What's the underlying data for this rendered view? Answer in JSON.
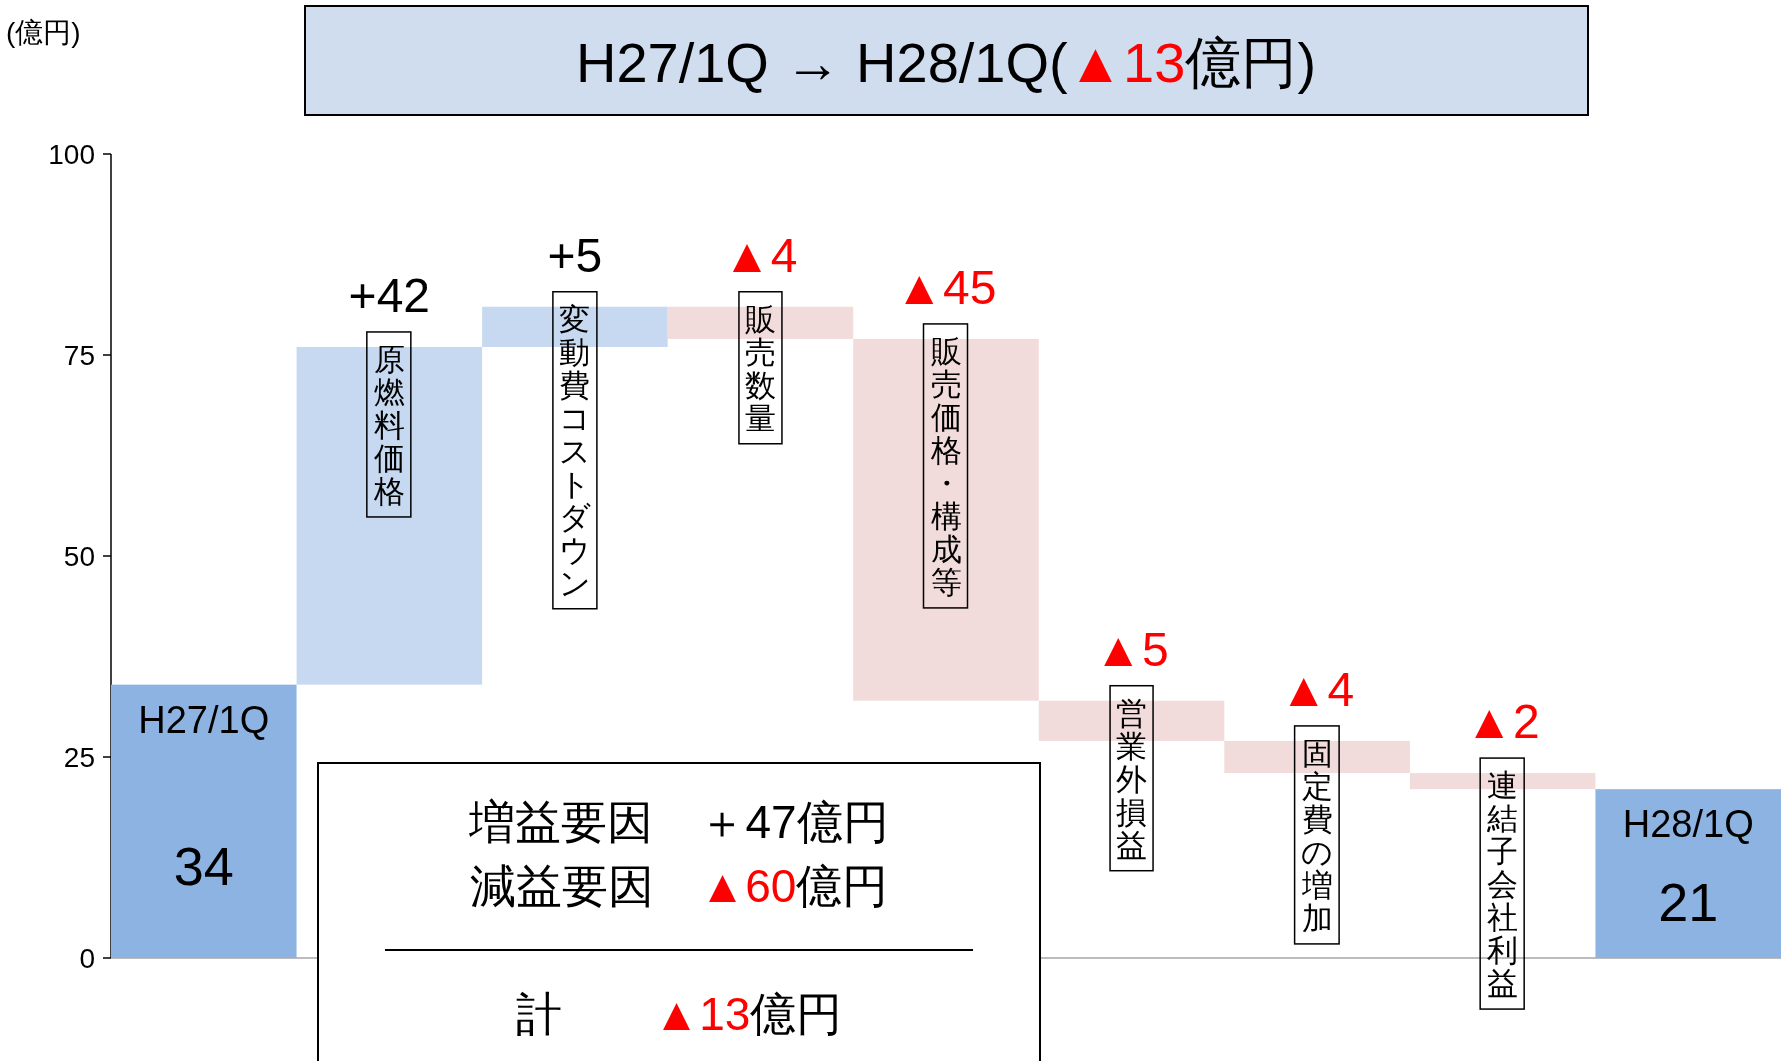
{
  "chart_data": {
    "type": "bar",
    "title": "H27/1Q → H28/1Q(▲13億円)",
    "ylabel": "(億円)",
    "categories": [
      "H27/1Q",
      "原燃料価格",
      "変動費コストダウン",
      "販売数量",
      "販売価格・構成等",
      "営業外損益",
      "固定費の増加",
      "連結子会社利益",
      "H28/1Q"
    ],
    "values": [
      34,
      42,
      5,
      -4,
      -45,
      -5,
      -4,
      -2,
      21
    ],
    "base": [
      0,
      34,
      76,
      81,
      77,
      32,
      27,
      23,
      0
    ],
    "colors": [
      "#8db3e2",
      "#c6d9f1",
      "#c6d9f1",
      "#f2dcdb",
      "#f2dcdb",
      "#f2dcdb",
      "#f2dcdb",
      "#f2dcdb",
      "#8db3e2"
    ],
    "value_labels": [
      "34",
      "+42",
      "+5",
      "▲4",
      "▲45",
      "▲5",
      "▲4",
      "▲2",
      "21"
    ],
    "ylim": [
      0,
      100
    ],
    "yticks": [
      0,
      25,
      50,
      75,
      100
    ],
    "annotations": [
      "増益要因　＋47億円",
      "減益要因　▲60億円",
      "計　　▲13億円"
    ]
  }
}
